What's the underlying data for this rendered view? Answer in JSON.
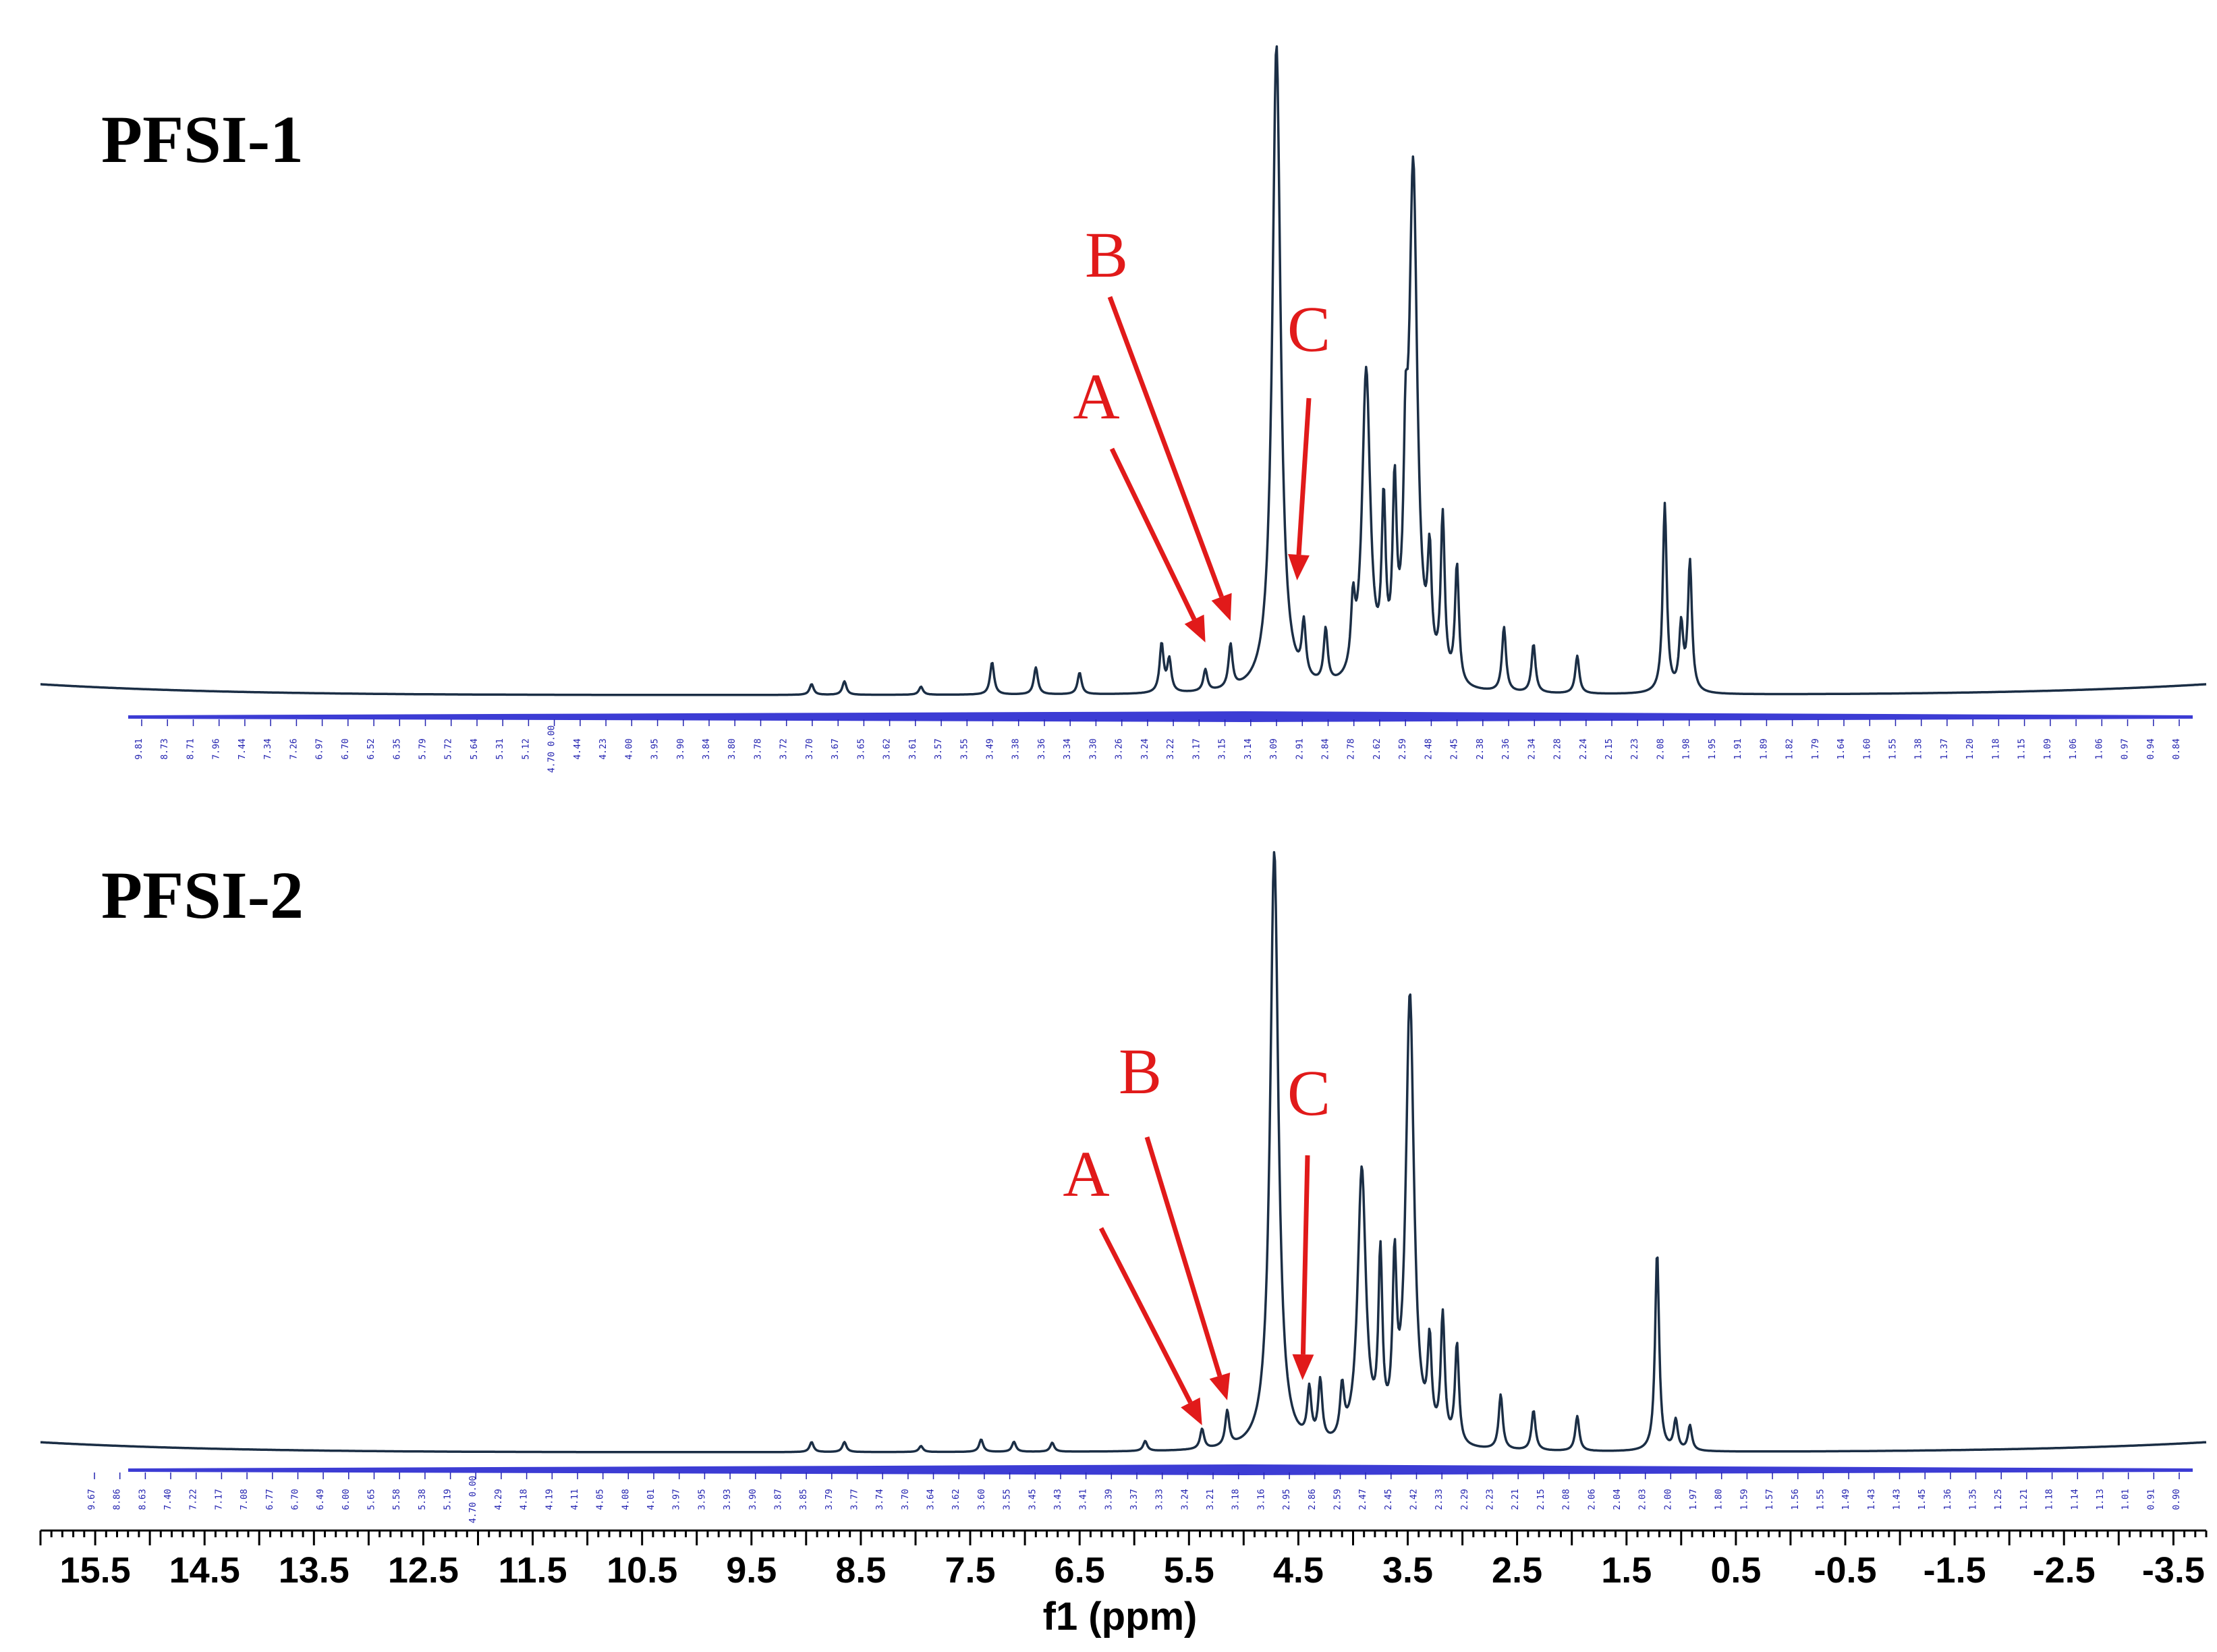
{
  "chart_data": [
    {
      "type": "line",
      "title": "PFSI-1",
      "xlabel": "f1 (ppm)",
      "xlim": [
        16.0,
        -3.8
      ],
      "x_reversed": true,
      "line_color": "#1b2e45",
      "annotation_color": "#e11a1a",
      "integral_color": "#1a1acc",
      "peaks": [
        {
          "ppm": 8.95,
          "height": 0.02
        },
        {
          "ppm": 8.65,
          "height": 0.025
        },
        {
          "ppm": 7.95,
          "height": 0.015
        },
        {
          "ppm": 7.3,
          "height": 0.06
        },
        {
          "ppm": 6.9,
          "height": 0.05
        },
        {
          "ppm": 6.5,
          "height": 0.04
        },
        {
          "ppm": 5.75,
          "height": 0.09
        },
        {
          "ppm": 5.68,
          "height": 0.06
        },
        {
          "ppm": 5.35,
          "height": 0.04
        },
        {
          "ppm": 5.12,
          "height": 0.08
        },
        {
          "ppm": 4.7,
          "height": 1.2
        },
        {
          "ppm": 4.45,
          "height": 0.1
        },
        {
          "ppm": 4.25,
          "height": 0.1
        },
        {
          "ppm": 4.0,
          "height": 0.12
        },
        {
          "ppm": 3.88,
          "height": 0.58
        },
        {
          "ppm": 3.72,
          "height": 0.3
        },
        {
          "ppm": 3.62,
          "height": 0.32
        },
        {
          "ppm": 3.52,
          "height": 0.28
        },
        {
          "ppm": 3.45,
          "height": 0.95
        },
        {
          "ppm": 3.3,
          "height": 0.2
        },
        {
          "ppm": 3.18,
          "height": 0.3
        },
        {
          "ppm": 3.05,
          "height": 0.22
        },
        {
          "ppm": 2.62,
          "height": 0.12
        },
        {
          "ppm": 2.35,
          "height": 0.09
        },
        {
          "ppm": 1.95,
          "height": 0.07
        },
        {
          "ppm": 1.15,
          "height": 0.35
        },
        {
          "ppm": 1.0,
          "height": 0.12
        },
        {
          "ppm": 0.92,
          "height": 0.24
        }
      ],
      "annotations": [
        {
          "label": "A",
          "ppm": 5.35
        },
        {
          "label": "B",
          "ppm": 5.12
        },
        {
          "label": "C",
          "ppm": 4.45
        }
      ],
      "integral_values": [
        "9.81",
        "8.73",
        "8.71",
        "7.96",
        "7.44",
        "7.34",
        "7.26",
        "6.97",
        "6.70",
        "6.52",
        "6.35",
        "5.79",
        "5.72",
        "5.64",
        "5.31",
        "5.12",
        "4.70 0.00",
        "4.44",
        "4.23",
        "4.00",
        "3.95",
        "3.90",
        "3.84",
        "3.80",
        "3.78",
        "3.72",
        "3.70",
        "3.67",
        "3.65",
        "3.62",
        "3.61",
        "3.57",
        "3.55",
        "3.49",
        "3.38",
        "3.36",
        "3.34",
        "3.30",
        "3.26",
        "3.24",
        "3.22",
        "3.17",
        "3.15",
        "3.14",
        "3.09",
        "2.91",
        "2.84",
        "2.78",
        "2.62",
        "2.59",
        "2.48",
        "2.45",
        "2.38",
        "2.36",
        "2.34",
        "2.28",
        "2.24",
        "2.15",
        "2.23",
        "2.08",
        "1.98",
        "1.95",
        "1.91",
        "1.89",
        "1.82",
        "1.79",
        "1.64",
        "1.60",
        "1.55",
        "1.38",
        "1.37",
        "1.20",
        "1.18",
        "1.15",
        "1.09",
        "1.06",
        "1.06",
        "0.97",
        "0.94",
        "0.84"
      ]
    },
    {
      "type": "line",
      "title": "PFSI-2",
      "xlabel": "f1 (ppm)",
      "xlim": [
        16.0,
        -3.8
      ],
      "x_reversed": true,
      "x_ticks": [
        15.5,
        14.5,
        13.5,
        12.5,
        11.5,
        10.5,
        9.5,
        8.5,
        7.5,
        6.5,
        5.5,
        4.5,
        3.5,
        2.5,
        1.5,
        0.5,
        -0.5,
        -1.5,
        -2.5,
        -3.5
      ],
      "x_tick_labels": [
        "15.5",
        "14.5",
        "13.5",
        "12.5",
        "11.5",
        "10.5",
        "9.5",
        "8.5",
        "7.5",
        "6.5",
        "5.5",
        "4.5",
        "3.5",
        "2.5",
        "1.5",
        "0.5",
        "-0.5",
        "-1.5",
        "-2.5",
        "-3.5"
      ],
      "line_color": "#1b2e45",
      "annotation_color": "#e11a1a",
      "integral_color": "#1a1acc",
      "peaks": [
        {
          "ppm": 8.95,
          "height": 0.02
        },
        {
          "ppm": 8.65,
          "height": 0.02
        },
        {
          "ppm": 7.95,
          "height": 0.012
        },
        {
          "ppm": 7.4,
          "height": 0.025
        },
        {
          "ppm": 7.1,
          "height": 0.02
        },
        {
          "ppm": 6.75,
          "height": 0.018
        },
        {
          "ppm": 5.9,
          "height": 0.02
        },
        {
          "ppm": 5.38,
          "height": 0.04
        },
        {
          "ppm": 5.15,
          "height": 0.07
        },
        {
          "ppm": 4.72,
          "height": 1.2
        },
        {
          "ppm": 4.4,
          "height": 0.1
        },
        {
          "ppm": 4.3,
          "height": 0.12
        },
        {
          "ppm": 4.1,
          "height": 0.1
        },
        {
          "ppm": 3.92,
          "height": 0.55
        },
        {
          "ppm": 3.75,
          "height": 0.35
        },
        {
          "ppm": 3.62,
          "height": 0.32
        },
        {
          "ppm": 3.48,
          "height": 0.9
        },
        {
          "ppm": 3.3,
          "height": 0.18
        },
        {
          "ppm": 3.18,
          "height": 0.25
        },
        {
          "ppm": 3.05,
          "height": 0.2
        },
        {
          "ppm": 2.65,
          "height": 0.11
        },
        {
          "ppm": 2.35,
          "height": 0.08
        },
        {
          "ppm": 1.95,
          "height": 0.07
        },
        {
          "ppm": 1.22,
          "height": 0.4
        },
        {
          "ppm": 1.05,
          "height": 0.06
        },
        {
          "ppm": 0.92,
          "height": 0.05
        }
      ],
      "annotations": [
        {
          "label": "A",
          "ppm": 5.38
        },
        {
          "label": "B",
          "ppm": 5.15
        },
        {
          "label": "C",
          "ppm": 4.4
        }
      ],
      "integral_values": [
        "9.67",
        "8.86",
        "8.63",
        "7.40",
        "7.22",
        "7.17",
        "7.08",
        "6.77",
        "6.70",
        "6.49",
        "6.00",
        "5.65",
        "5.58",
        "5.38",
        "5.19",
        "4.70 0.00",
        "4.29",
        "4.18",
        "4.19",
        "4.11",
        "4.05",
        "4.08",
        "4.01",
        "3.97",
        "3.95",
        "3.93",
        "3.90",
        "3.87",
        "3.85",
        "3.79",
        "3.77",
        "3.74",
        "3.70",
        "3.64",
        "3.62",
        "3.60",
        "3.55",
        "3.45",
        "3.43",
        "3.41",
        "3.39",
        "3.37",
        "3.33",
        "3.24",
        "3.21",
        "3.18",
        "3.16",
        "2.95",
        "2.86",
        "2.59",
        "2.47",
        "2.45",
        "2.42",
        "2.33",
        "2.29",
        "2.23",
        "2.21",
        "2.15",
        "2.08",
        "2.06",
        "2.04",
        "2.03",
        "2.00",
        "1.97",
        "1.80",
        "1.59",
        "1.57",
        "1.56",
        "1.55",
        "1.49",
        "1.43",
        "1.43",
        "1.45",
        "1.36",
        "1.35",
        "1.25",
        "1.21",
        "1.18",
        "1.14",
        "1.13",
        "1.01",
        "0.91",
        "0.90"
      ]
    }
  ]
}
